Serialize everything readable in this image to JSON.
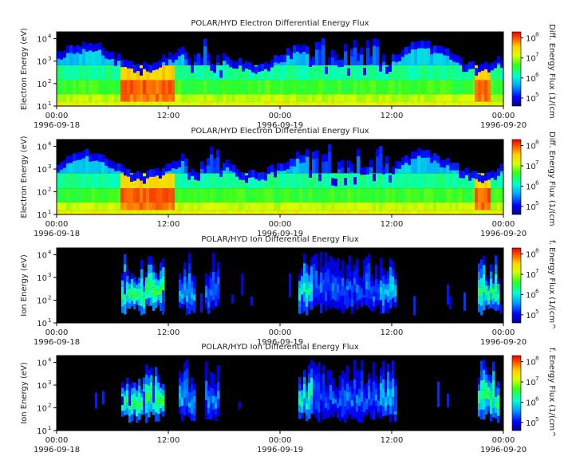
{
  "chart_data": [
    {
      "type": "heatmap",
      "title": "POLAR/HYD  Electron Differential Energy Flux",
      "ylabel": "Electron Energy (eV)",
      "yscale": "log",
      "ylim": [
        10,
        20000
      ],
      "yticks": [
        "10",
        "10",
        "10",
        "10"
      ],
      "ytick_exponents": [
        "1",
        "2",
        "3",
        "4"
      ],
      "xlim": [
        "1996-09-18 00:00",
        "1996-09-20 00:00"
      ],
      "xticks": [
        {
          "time": "00:00",
          "date": "1996-09-18"
        },
        {
          "time": "12:00",
          "date": ""
        },
        {
          "time": "00:00",
          "date": "1996-09-19"
        },
        {
          "time": "12:00",
          "date": ""
        },
        {
          "time": "00:00",
          "date": "1996-09-20"
        }
      ],
      "colorbar": {
        "label": "Diff. Energy Flux (1/(cm",
        "scale": "log",
        "ticks": [
          "10",
          "10",
          "10",
          "10"
        ],
        "tick_exponents": [
          "5",
          "6",
          "7",
          "8"
        ]
      }
    },
    {
      "type": "heatmap",
      "title": "POLAR/HYD  Electron Differential Energy Flux",
      "ylabel": "Electron Energy (eV)",
      "yscale": "log",
      "ylim": [
        10,
        20000
      ],
      "yticks": [
        "10",
        "10",
        "10",
        "10"
      ],
      "ytick_exponents": [
        "1",
        "2",
        "3",
        "4"
      ],
      "xlim": [
        "1996-09-18 00:00",
        "1996-09-20 00:00"
      ],
      "xticks": [
        {
          "time": "00:00",
          "date": "1996-09-18"
        },
        {
          "time": "12:00",
          "date": ""
        },
        {
          "time": "00:00",
          "date": "1996-09-19"
        },
        {
          "time": "12:00",
          "date": ""
        },
        {
          "time": "00:00",
          "date": "1996-09-20"
        }
      ],
      "colorbar": {
        "label": "Diff. Energy Flux (1/(cm",
        "scale": "log",
        "ticks": [
          "10",
          "10",
          "10",
          "10"
        ],
        "tick_exponents": [
          "5",
          "6",
          "7",
          "8"
        ]
      }
    },
    {
      "type": "heatmap",
      "title": "POLAR/HYD  Ion Differential Energy Flux",
      "ylabel": "Ion Energy (eV)",
      "yscale": "log",
      "ylim": [
        10,
        20000
      ],
      "yticks": [
        "10",
        "10",
        "10",
        "10"
      ],
      "ytick_exponents": [
        "1",
        "2",
        "3",
        "4"
      ],
      "xlim": [
        "1996-09-18 00:00",
        "1996-09-20 00:00"
      ],
      "xticks": [
        {
          "time": "00:00",
          "date": "1996-09-18"
        },
        {
          "time": "12:00",
          "date": ""
        },
        {
          "time": "00:00",
          "date": "1996-09-19"
        },
        {
          "time": "12:00",
          "date": ""
        },
        {
          "time": "00:00",
          "date": "1996-09-20"
        }
      ],
      "colorbar": {
        "label": "f. Energy Flux (1/(cm^",
        "scale": "log",
        "ticks": [
          "10",
          "10",
          "10",
          "10"
        ],
        "tick_exponents": [
          "5",
          "6",
          "7",
          "8"
        ]
      }
    },
    {
      "type": "heatmap",
      "title": "POLAR/HYD  Ion Differential Energy Flux",
      "ylabel": "Ion Energy (eV)",
      "yscale": "log",
      "ylim": [
        10,
        20000
      ],
      "yticks": [
        "10",
        "10",
        "10",
        "10"
      ],
      "ytick_exponents": [
        "1",
        "2",
        "3",
        "4"
      ],
      "xlim": [
        "1996-09-18 00:00",
        "1996-09-20 00:00"
      ],
      "xticks": [
        {
          "time": "00:00",
          "date": "1996-09-18"
        },
        {
          "time": "12:00",
          "date": ""
        },
        {
          "time": "00:00",
          "date": "1996-09-19"
        },
        {
          "time": "12:00",
          "date": ""
        },
        {
          "time": "00:00",
          "date": "1996-09-20"
        }
      ],
      "colorbar": {
        "label": "f. Energy Flux (1/(cm^",
        "scale": "log",
        "ticks": [
          "10",
          "10",
          "10",
          "10"
        ],
        "tick_exponents": [
          "5",
          "6",
          "7",
          "8"
        ]
      }
    }
  ]
}
